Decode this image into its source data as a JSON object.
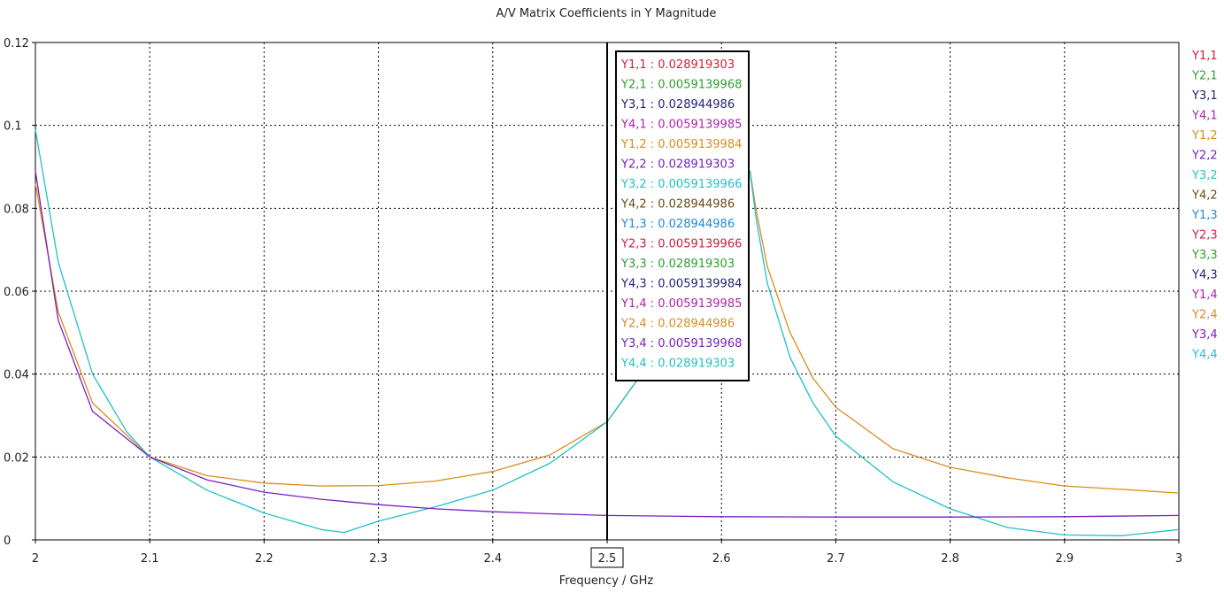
{
  "chart_data": {
    "type": "line",
    "title": "A/V Matrix Coefficients in Y Magnitude",
    "xlabel": "Frequency / GHz",
    "ylabel": "",
    "xlim": [
      2.0,
      3.0
    ],
    "ylim": [
      0,
      0.12
    ],
    "x_ticks": [
      "2",
      "2.1",
      "2.2",
      "2.3",
      "2.4",
      "2.5",
      "2.6",
      "2.7",
      "2.8",
      "2.9",
      "3"
    ],
    "y_ticks": [
      "0",
      "0.02",
      "0.04",
      "0.06",
      "0.08",
      "0.1",
      "0.12"
    ],
    "grid": true,
    "legend_position": "right",
    "cursor": {
      "x": 2.5,
      "label": "2.5"
    },
    "legend": [
      {
        "name": "Y1,1",
        "color": "#d01f3c"
      },
      {
        "name": "Y2,1",
        "color": "#2ca02c"
      },
      {
        "name": "Y3,1",
        "color": "#1f1f7a"
      },
      {
        "name": "Y4,1",
        "color": "#b01fb0"
      },
      {
        "name": "Y1,2",
        "color": "#d98c1f"
      },
      {
        "name": "Y2,2",
        "color": "#7a1fc0"
      },
      {
        "name": "Y3,2",
        "color": "#20c0c8"
      },
      {
        "name": "Y4,2",
        "color": "#6b4a10"
      },
      {
        "name": "Y1,3",
        "color": "#1f8ad8"
      },
      {
        "name": "Y2,3",
        "color": "#d01f3c"
      },
      {
        "name": "Y3,3",
        "color": "#2ca02c"
      },
      {
        "name": "Y4,3",
        "color": "#1f1f7a"
      },
      {
        "name": "Y1,4",
        "color": "#b01fb0"
      },
      {
        "name": "Y2,4",
        "color": "#d98c1f"
      },
      {
        "name": "Y3,4",
        "color": "#7a1fc0"
      },
      {
        "name": "Y4,4",
        "color": "#20c0c8"
      }
    ],
    "cursor_readout": [
      {
        "label": "Y1,1 : 0.028919303",
        "color": "#d01f3c"
      },
      {
        "label": "Y2,1 : 0.0059139968",
        "color": "#2ca02c"
      },
      {
        "label": "Y3,1 : 0.028944986",
        "color": "#1f1f7a"
      },
      {
        "label": "Y4,1 : 0.0059139985",
        "color": "#b01fb0"
      },
      {
        "label": "Y1,2 : 0.0059139984",
        "color": "#d98c1f"
      },
      {
        "label": "Y2,2 : 0.028919303",
        "color": "#7a1fc0"
      },
      {
        "label": "Y3,2 : 0.0059139966",
        "color": "#20c0c8"
      },
      {
        "label": "Y4,2 : 0.028944986",
        "color": "#6b4a10"
      },
      {
        "label": "Y1,3 : 0.028944986",
        "color": "#1f8ad8"
      },
      {
        "label": "Y2,3 : 0.0059139966",
        "color": "#d01f3c"
      },
      {
        "label": "Y3,3 : 0.028919303",
        "color": "#2ca02c"
      },
      {
        "label": "Y4,3 : 0.0059139984",
        "color": "#1f1f7a"
      },
      {
        "label": "Y1,4 : 0.0059139985",
        "color": "#b01fb0"
      },
      {
        "label": "Y2,4 : 0.028944986",
        "color": "#d98c1f"
      },
      {
        "label": "Y3,4 : 0.0059139968",
        "color": "#7a1fc0"
      },
      {
        "label": "Y4,4 : 0.028919303",
        "color": "#20c0c8"
      }
    ],
    "series": [
      {
        "color": "#d98c1f",
        "x": [
          2.0,
          2.02,
          2.05,
          2.1,
          2.15,
          2.2,
          2.25,
          2.3,
          2.35,
          2.4,
          2.45,
          2.5,
          2.53
        ],
        "y": [
          0.086,
          0.055,
          0.033,
          0.02,
          0.0155,
          0.0137,
          0.013,
          0.0131,
          0.0142,
          0.0165,
          0.0205,
          0.0285,
          0.04
        ]
      },
      {
        "color": "#d98c1f",
        "x": [
          2.625,
          2.63,
          2.64,
          2.66,
          2.68,
          2.7,
          2.75,
          2.8,
          2.85,
          2.9,
          2.95,
          3.0
        ],
        "y": [
          0.089,
          0.08,
          0.066,
          0.05,
          0.039,
          0.032,
          0.022,
          0.0175,
          0.015,
          0.013,
          0.0122,
          0.0113
        ]
      },
      {
        "color": "#20c0c8",
        "x": [
          2.0,
          2.02,
          2.05,
          2.08,
          2.1,
          2.15,
          2.2,
          2.25,
          2.27,
          2.3,
          2.35,
          2.4,
          2.45,
          2.5,
          2.53
        ],
        "y": [
          0.099,
          0.067,
          0.04,
          0.026,
          0.02,
          0.012,
          0.0065,
          0.0025,
          0.0018,
          0.0045,
          0.008,
          0.012,
          0.0185,
          0.0285,
          0.04
        ]
      },
      {
        "color": "#20c0c8",
        "x": [
          2.625,
          2.63,
          2.64,
          2.66,
          2.68,
          2.7,
          2.75,
          2.8,
          2.85,
          2.9,
          2.95,
          3.0
        ],
        "y": [
          0.089,
          0.078,
          0.062,
          0.044,
          0.033,
          0.025,
          0.014,
          0.0075,
          0.003,
          0.0012,
          0.001,
          0.0025
        ]
      },
      {
        "color": "#7a1fc0",
        "x": [
          2.0,
          2.02,
          2.05,
          2.1,
          2.15,
          2.2,
          2.25,
          2.3,
          2.35,
          2.4,
          2.45,
          2.5,
          2.6,
          2.7,
          2.8,
          2.9,
          3.0
        ],
        "y": [
          0.089,
          0.053,
          0.031,
          0.02,
          0.0145,
          0.0115,
          0.0098,
          0.0085,
          0.0075,
          0.0068,
          0.0063,
          0.0059,
          0.0056,
          0.0055,
          0.0055,
          0.0056,
          0.0059
        ]
      }
    ]
  }
}
